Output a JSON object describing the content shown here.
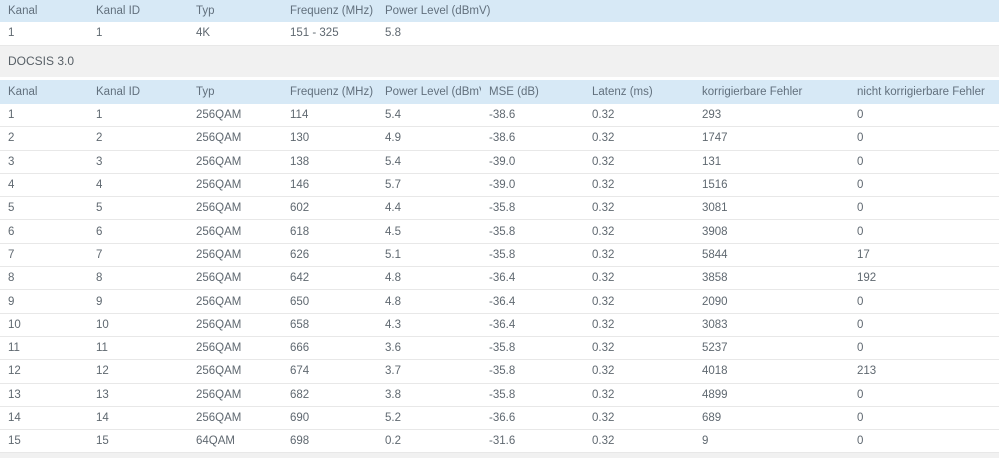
{
  "colors": {
    "header_bg": "#d7e9f6",
    "section_bg": "#f1f1f1",
    "row_border": "#e8e8e8",
    "header_text": "#62707d",
    "cell_text": "#5f6870"
  },
  "table_docsis31": {
    "headers": [
      "Kanal",
      "Kanal ID",
      "Typ",
      "Frequenz (MHz)",
      "Power Level (dBmV)"
    ],
    "rows": [
      [
        "1",
        "1",
        "4K",
        "151 - 325",
        "5.8"
      ]
    ]
  },
  "section": {
    "label": "DOCSIS 3.0"
  },
  "table_docsis30": {
    "headers": [
      "Kanal",
      "Kanal ID",
      "Typ",
      "Frequenz (MHz)",
      "Power Level (dBmV)",
      "MSE (dB)",
      "Latenz (ms)",
      "korrigierbare Fehler",
      "nicht korrigierbare Fehler"
    ],
    "rows": [
      [
        "1",
        "1",
        "256QAM",
        "114",
        "5.4",
        "-38.6",
        "0.32",
        "293",
        "0"
      ],
      [
        "2",
        "2",
        "256QAM",
        "130",
        "4.9",
        "-38.6",
        "0.32",
        "1747",
        "0"
      ],
      [
        "3",
        "3",
        "256QAM",
        "138",
        "5.4",
        "-39.0",
        "0.32",
        "131",
        "0"
      ],
      [
        "4",
        "4",
        "256QAM",
        "146",
        "5.7",
        "-39.0",
        "0.32",
        "1516",
        "0"
      ],
      [
        "5",
        "5",
        "256QAM",
        "602",
        "4.4",
        "-35.8",
        "0.32",
        "3081",
        "0"
      ],
      [
        "6",
        "6",
        "256QAM",
        "618",
        "4.5",
        "-35.8",
        "0.32",
        "3908",
        "0"
      ],
      [
        "7",
        "7",
        "256QAM",
        "626",
        "5.1",
        "-35.8",
        "0.32",
        "5844",
        "17"
      ],
      [
        "8",
        "8",
        "256QAM",
        "642",
        "4.8",
        "-36.4",
        "0.32",
        "3858",
        "192"
      ],
      [
        "9",
        "9",
        "256QAM",
        "650",
        "4.8",
        "-36.4",
        "0.32",
        "2090",
        "0"
      ],
      [
        "10",
        "10",
        "256QAM",
        "658",
        "4.3",
        "-36.4",
        "0.32",
        "3083",
        "0"
      ],
      [
        "11",
        "11",
        "256QAM",
        "666",
        "3.6",
        "-35.8",
        "0.32",
        "5237",
        "0"
      ],
      [
        "12",
        "12",
        "256QAM",
        "674",
        "3.7",
        "-35.8",
        "0.32",
        "4018",
        "213"
      ],
      [
        "13",
        "13",
        "256QAM",
        "682",
        "3.8",
        "-35.8",
        "0.32",
        "4899",
        "0"
      ],
      [
        "14",
        "14",
        "256QAM",
        "690",
        "5.2",
        "-36.6",
        "0.32",
        "689",
        "0"
      ],
      [
        "15",
        "15",
        "64QAM",
        "698",
        "0.2",
        "-31.6",
        "0.32",
        "9",
        "0"
      ]
    ]
  }
}
